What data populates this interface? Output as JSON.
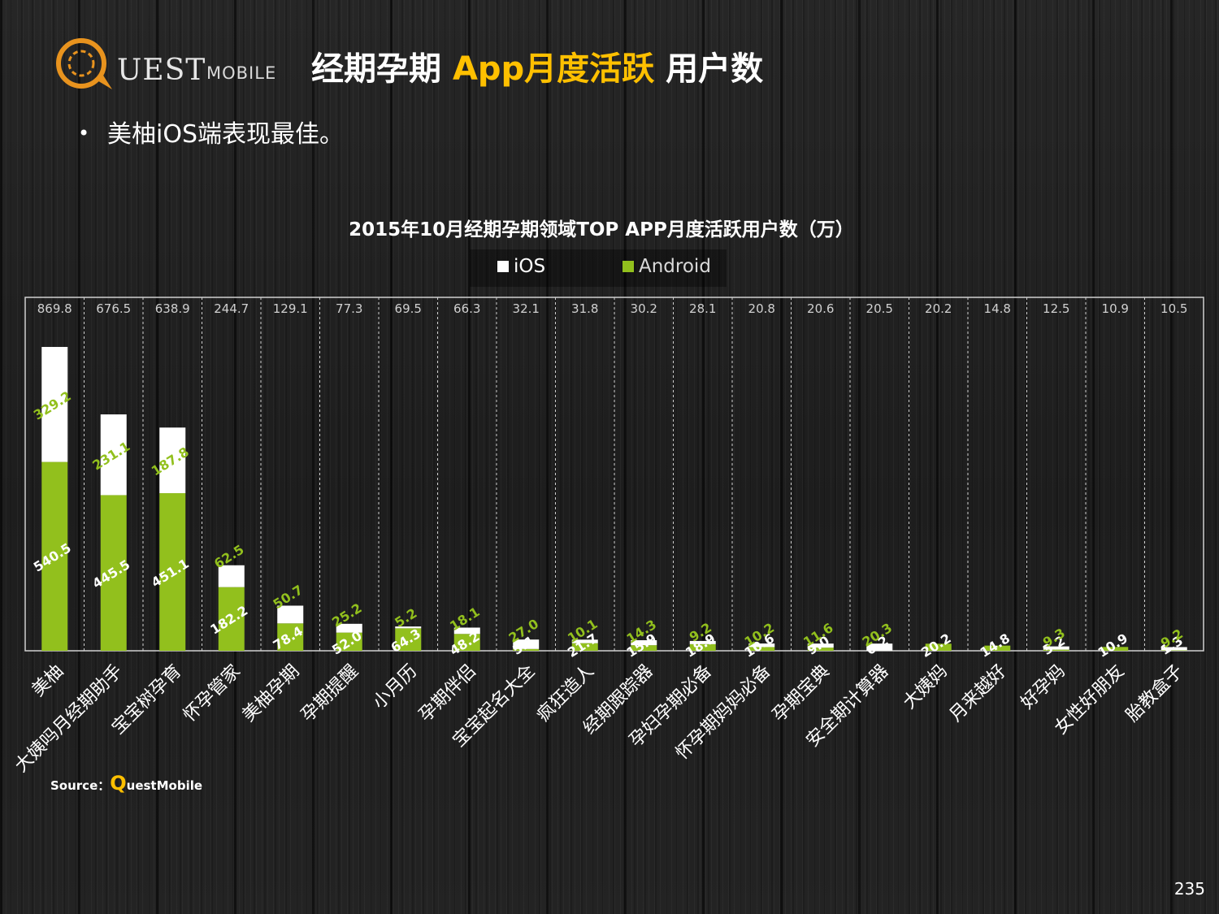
{
  "header": {
    "logo_text": "UEST",
    "logo_sub": "MOBILE",
    "title_part1": "经期孕期 ",
    "title_highlight": "App月度活跃",
    "title_part2": " 用户数"
  },
  "bullet": "美柚iOS端表现最佳。",
  "source_label": "Source：",
  "source_q": "Q",
  "source_rest": "uestMobile",
  "page_number": "235",
  "colors": {
    "android": "#92c01d",
    "ios": "#ffffff",
    "title_highlight": "#ffc000"
  },
  "chart_data": {
    "type": "bar",
    "stacked": true,
    "title": "2015年10月经期孕期领域TOP APP月度活跃用户数（万）",
    "legend": [
      "iOS",
      "Android"
    ],
    "legend_position": "top",
    "categories": [
      "美柚",
      "大姨吗月经期助手",
      "宝宝树孕育",
      "怀孕管家",
      "美柚孕期",
      "孕期提醒",
      "小月历",
      "孕期伴侣",
      "宝宝起名大全",
      "疯狂造人",
      "经期跟踪器",
      "孕妇孕期必备",
      "怀孕期妈妈必备",
      "孕期宝典",
      "安全期计算器",
      "大姨妈",
      "月来越好",
      "好孕妈",
      "女性好朋友",
      "胎教盒子"
    ],
    "totals": [
      "869.8",
      "676.5",
      "638.9",
      "244.7",
      "129.1",
      "77.3",
      "69.5",
      "66.3",
      "32.1",
      "31.8",
      "30.2",
      "28.1",
      "20.8",
      "20.6",
      "20.5",
      "20.2",
      "14.8",
      "12.5",
      "10.9",
      "10.5"
    ],
    "series": [
      {
        "name": "Android",
        "values": [
          540.5,
          445.5,
          451.1,
          182.2,
          78.4,
          52.0,
          64.3,
          48.2,
          5.1,
          21.7,
          15.9,
          18.9,
          10.6,
          9.0,
          0.2,
          20.2,
          14.8,
          3.2,
          10.9,
          1.3
        ],
        "labels": [
          "540.5",
          "445.5",
          "451.1",
          "182.2",
          "78.4",
          "52.0",
          "64.3",
          "48.2",
          "5.1",
          "21.7",
          "15.9",
          "18.9",
          "10.6",
          "9.0",
          "0.2",
          "20.2",
          "14.8",
          "3.2",
          "10.9",
          "1.3"
        ]
      },
      {
        "name": "iOS",
        "values": [
          329.2,
          231.1,
          187.8,
          62.5,
          50.7,
          25.2,
          5.2,
          18.1,
          27.0,
          10.1,
          14.3,
          9.2,
          10.2,
          11.6,
          20.3,
          0,
          0,
          9.3,
          0,
          9.2
        ],
        "labels": [
          "329.2",
          "231.1",
          "187.8",
          "62.5",
          "50.7",
          "25.2",
          "5.2",
          "18.1",
          "27.0",
          "10.1",
          "14.3",
          "9.2",
          "10.2",
          "11.6",
          "20.3",
          "",
          "",
          "9.3",
          "",
          "9.2"
        ]
      }
    ],
    "ylim": [
      0,
      1000
    ],
    "grid": "vertical-dashed"
  }
}
